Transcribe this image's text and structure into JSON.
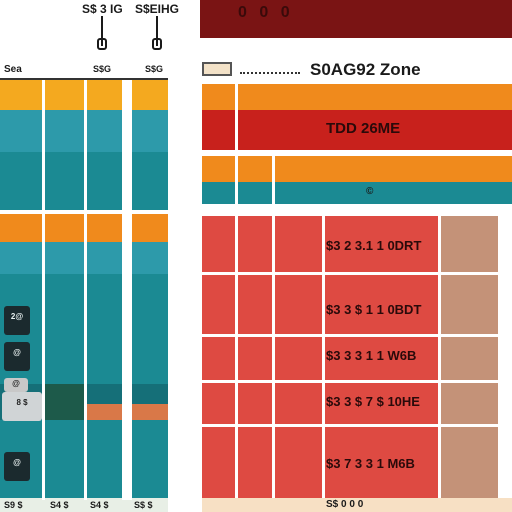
{
  "colors": {
    "orange": "#f08a1c",
    "amber": "#f4a91f",
    "teal": "#1b8a93",
    "teal_dark": "#156f78",
    "teal_light": "#2d9aaa",
    "red": "#c8211c",
    "salmon": "#de4a42",
    "tan": "#c49278",
    "dark_header": "#7a1414",
    "green_dark": "#1d5a4a"
  },
  "header": {
    "col_label_a": "S$ 3 IG",
    "col_label_b": "S$EIHG",
    "top_box_text": "0 0 0"
  },
  "left_panel": {
    "header_left": "Sea",
    "header_mid": "S$G",
    "header_right": "S$G",
    "badges": [
      "2@",
      "@",
      "@",
      "8 $",
      "@"
    ],
    "footer": [
      "S9 $",
      "S4 $",
      "S4 $",
      "S$ $"
    ]
  },
  "right_panel": {
    "title": "S0AG92 Zone",
    "banner_text": "TDD 26ME",
    "teal_marker": "©",
    "prices": [
      "$3 2 3.1 1 0DRT",
      "$3 3 $ 1 1 0BDT",
      "$3 3 3 1 1 W6B",
      "$3 3 $ 7 $ 10HE",
      "$3 7 3 3 1 M6B"
    ],
    "footer_text": "S$ 0 0 0"
  }
}
